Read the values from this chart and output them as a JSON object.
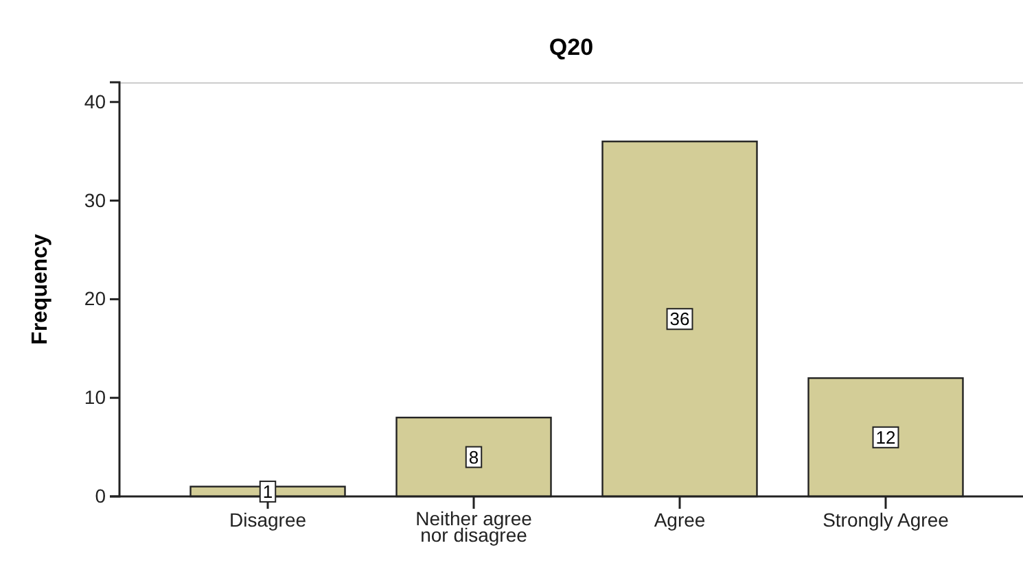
{
  "chart_data": {
    "type": "bar",
    "title": "Q20",
    "ylabel": "Frequency",
    "categories": [
      "Disagree",
      "Neither agree nor disagree",
      "Agree",
      "Strongly Agree"
    ],
    "values": [
      1,
      8,
      36,
      12
    ],
    "color": "#d3cd97",
    "ylim": [
      0,
      42
    ],
    "yticks": [
      0,
      10,
      20,
      30,
      40
    ],
    "grid": false,
    "data_labels": true
  }
}
